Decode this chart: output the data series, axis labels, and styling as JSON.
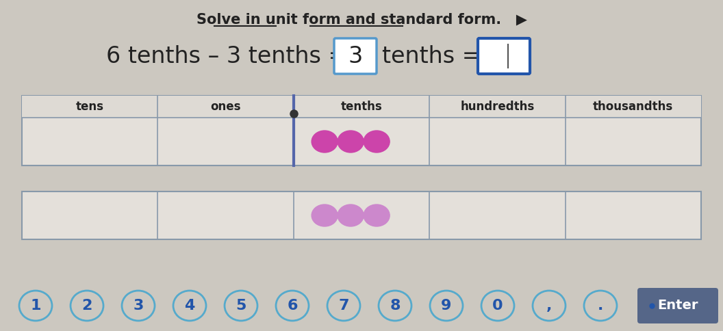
{
  "bg_color": "#ccc8c0",
  "title_text": "Solve in unit form and standard form.",
  "table_columns": [
    "tens",
    "ones",
    "tenths",
    "hundredths",
    "thousandths"
  ],
  "dot_color_dark": "#cc44aa",
  "dot_color_light": "#cc88cc",
  "decimal_point_color": "#333333",
  "border_color": "#8899aa",
  "table_bg": "#e4e0da",
  "table_header_bg": "#dedad4",
  "row2_bg": "#e4e0da",
  "answer_box_color": "#5599cc",
  "answer_box2_color": "#2255aa",
  "btn_border_color": "#55aacc",
  "btn_text_color": "#2255aa",
  "enter_btn_color": "#556688",
  "text_color": "#222222",
  "speaker_color": "#444488"
}
